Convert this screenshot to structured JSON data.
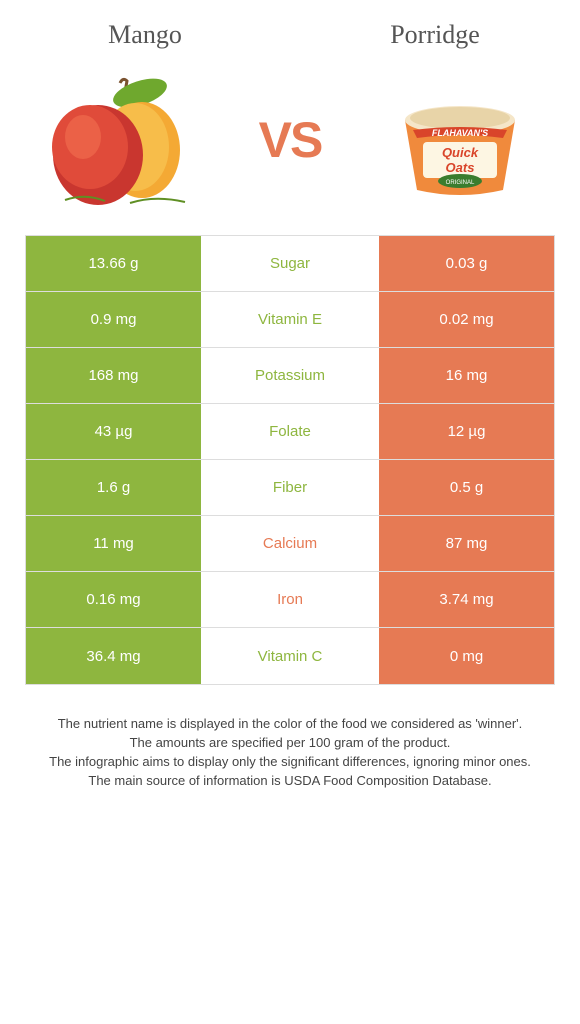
{
  "colors": {
    "mango": "#8eb63f",
    "porridge": "#e67a54",
    "divider": "#dddddd",
    "footer_text": "#444444",
    "header_text": "#555555"
  },
  "header": {
    "left": "Mango",
    "right": "Porridge",
    "vs": "VS"
  },
  "rows": [
    {
      "left": "13.66 g",
      "label": "Sugar",
      "right": "0.03 g",
      "winner": "mango"
    },
    {
      "left": "0.9 mg",
      "label": "Vitamin E",
      "right": "0.02 mg",
      "winner": "mango"
    },
    {
      "left": "168 mg",
      "label": "Potassium",
      "right": "16 mg",
      "winner": "mango"
    },
    {
      "left": "43 µg",
      "label": "Folate",
      "right": "12 µg",
      "winner": "mango"
    },
    {
      "left": "1.6 g",
      "label": "Fiber",
      "right": "0.5 g",
      "winner": "mango"
    },
    {
      "left": "11 mg",
      "label": "Calcium",
      "right": "87 mg",
      "winner": "porridge"
    },
    {
      "left": "0.16 mg",
      "label": "Iron",
      "right": "3.74 mg",
      "winner": "porridge"
    },
    {
      "left": "36.4 mg",
      "label": "Vitamin C",
      "right": "0 mg",
      "winner": "mango"
    }
  ],
  "footer": {
    "line1": "The nutrient name is displayed in the color of the food we considered as 'winner'.",
    "line2": "The amounts are specified per 100 gram of the product.",
    "line3": "The infographic aims to display only the significant differences, ignoring minor ones.",
    "line4": "The main source of information is USDA Food Composition Database."
  }
}
